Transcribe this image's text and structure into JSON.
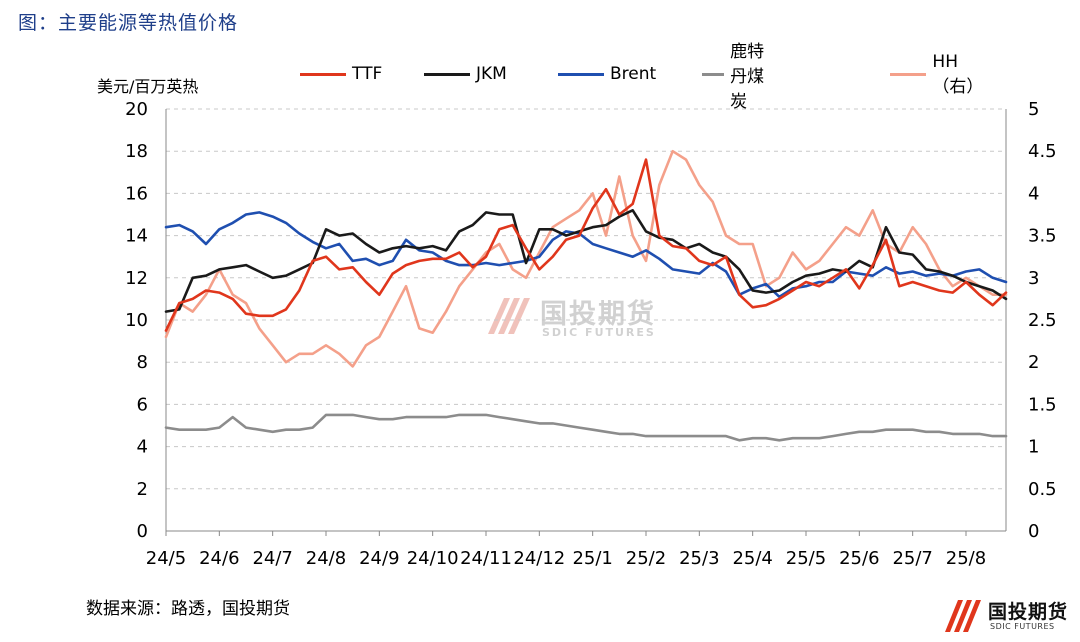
{
  "figure": {
    "title": "图：主要能源等热值价格",
    "unit": "美元/百万英热",
    "source": "数据来源：路透，国投期货"
  },
  "logo": {
    "cn": "国投期货",
    "en": "SDIC FUTURES"
  },
  "watermark": {
    "cn": "国投期货",
    "en": "SDIC FUTURES"
  },
  "chart_data": {
    "type": "line",
    "x_tick_labels": [
      "24/5",
      "24/6",
      "24/7",
      "24/8",
      "24/9",
      "24/10",
      "24/11",
      "24/12",
      "25/1",
      "25/2",
      "25/3",
      "25/4",
      "25/5",
      "25/6",
      "25/7",
      "25/8"
    ],
    "x_range": [
      0,
      15.75
    ],
    "ylabel": "美元/百万英热",
    "ylim": [
      0,
      20
    ],
    "y_ticks": [
      0,
      2,
      4,
      6,
      8,
      10,
      12,
      14,
      16,
      18,
      20
    ],
    "y2lim": [
      0,
      5
    ],
    "y2_ticks": [
      "0",
      "0.5",
      "1",
      "1.5",
      "2",
      "2.5",
      "3",
      "3.5",
      "4",
      "4.5",
      "5"
    ],
    "grid": "horizontal dashed",
    "legend_position": "top",
    "series": [
      {
        "name": "TTF",
        "axis": "left",
        "color": "#e0361c",
        "x": [
          0,
          0.25,
          0.5,
          0.75,
          1,
          1.25,
          1.5,
          1.75,
          2,
          2.25,
          2.5,
          2.75,
          3,
          3.25,
          3.5,
          3.75,
          4,
          4.25,
          4.5,
          4.75,
          5,
          5.25,
          5.5,
          5.75,
          6,
          6.25,
          6.5,
          6.75,
          7,
          7.25,
          7.5,
          7.75,
          8,
          8.25,
          8.5,
          8.75,
          9,
          9.25,
          9.5,
          9.75,
          10,
          10.25,
          10.5,
          10.75,
          11,
          11.25,
          11.5,
          11.75,
          12,
          12.25,
          12.5,
          12.75,
          13,
          13.25,
          13.5,
          13.75,
          14,
          14.25,
          14.5,
          14.75,
          15,
          15.25,
          15.5,
          15.75
        ],
        "values": [
          9.5,
          10.8,
          11,
          11.4,
          11.3,
          11,
          10.3,
          10.2,
          10.2,
          10.5,
          11.4,
          12.8,
          13,
          12.4,
          12.5,
          11.8,
          11.2,
          12.2,
          12.6,
          12.8,
          12.9,
          12.9,
          13.2,
          12.5,
          13,
          14.3,
          14.5,
          13.4,
          12.4,
          13,
          13.8,
          14,
          15.3,
          16.2,
          15,
          15.5,
          17.6,
          14,
          13.5,
          13.4,
          12.8,
          12.6,
          13,
          11.2,
          10.6,
          10.7,
          11,
          11.4,
          11.8,
          11.6,
          12,
          12.4,
          11.5,
          12.6,
          13.8,
          11.6,
          11.8,
          11.6,
          11.4,
          11.3,
          11.8,
          11.2,
          10.7,
          11.3
        ]
      },
      {
        "name": "JKM",
        "axis": "left",
        "color": "#1a1a1a",
        "x": [
          0,
          0.25,
          0.5,
          0.75,
          1,
          1.25,
          1.5,
          1.75,
          2,
          2.25,
          2.5,
          2.75,
          3,
          3.25,
          3.5,
          3.75,
          4,
          4.25,
          4.5,
          4.75,
          5,
          5.25,
          5.5,
          5.75,
          6,
          6.25,
          6.5,
          6.75,
          7,
          7.25,
          7.5,
          7.75,
          8,
          8.25,
          8.5,
          8.75,
          9,
          9.25,
          9.5,
          9.75,
          10,
          10.25,
          10.5,
          10.75,
          11,
          11.25,
          11.5,
          11.75,
          12,
          12.25,
          12.5,
          12.75,
          13,
          13.25,
          13.5,
          13.75,
          14,
          14.25,
          14.5,
          14.75,
          15,
          15.25,
          15.5,
          15.75
        ],
        "values": [
          10.4,
          10.5,
          12,
          12.1,
          12.4,
          12.5,
          12.6,
          12.3,
          12,
          12.1,
          12.4,
          12.7,
          14.3,
          14,
          14.1,
          13.6,
          13.2,
          13.4,
          13.5,
          13.4,
          13.5,
          13.3,
          14.2,
          14.5,
          15.1,
          15,
          15,
          12.7,
          14.3,
          14.3,
          14,
          14.2,
          14.4,
          14.5,
          14.9,
          15.2,
          14.2,
          13.9,
          13.8,
          13.4,
          13.6,
          13.2,
          13,
          12.4,
          11.4,
          11.3,
          11.4,
          11.8,
          12.1,
          12.2,
          12.4,
          12.3,
          12.8,
          12.5,
          14.4,
          13.2,
          13.1,
          12.4,
          12.3,
          12.1,
          11.8,
          11.6,
          11.4,
          11.0
        ]
      },
      {
        "name": "Brent",
        "axis": "left",
        "color": "#1f4fb0",
        "x": [
          0,
          0.25,
          0.5,
          0.75,
          1,
          1.25,
          1.5,
          1.75,
          2,
          2.25,
          2.5,
          2.75,
          3,
          3.25,
          3.5,
          3.75,
          4,
          4.25,
          4.5,
          4.75,
          5,
          5.25,
          5.5,
          5.75,
          6,
          6.25,
          6.5,
          6.75,
          7,
          7.25,
          7.5,
          7.75,
          8,
          8.25,
          8.5,
          8.75,
          9,
          9.25,
          9.5,
          9.75,
          10,
          10.25,
          10.5,
          10.75,
          11,
          11.25,
          11.5,
          11.75,
          12,
          12.25,
          12.5,
          12.75,
          13,
          13.25,
          13.5,
          13.75,
          14,
          14.25,
          14.5,
          14.75,
          15,
          15.25,
          15.5,
          15.75
        ],
        "values": [
          14.4,
          14.5,
          14.2,
          13.6,
          14.3,
          14.6,
          15,
          15.1,
          14.9,
          14.6,
          14.1,
          13.7,
          13.4,
          13.6,
          12.8,
          12.9,
          12.6,
          12.8,
          13.8,
          13.3,
          13.2,
          12.8,
          12.6,
          12.6,
          12.7,
          12.6,
          12.7,
          12.8,
          13,
          13.8,
          14.2,
          14.1,
          13.6,
          13.4,
          13.2,
          13,
          13.3,
          12.9,
          12.4,
          12.3,
          12.2,
          12.7,
          12.3,
          11.2,
          11.5,
          11.7,
          11.1,
          11.5,
          11.6,
          11.8,
          11.8,
          12.3,
          12.2,
          12.1,
          12.5,
          12.2,
          12.3,
          12.1,
          12.2,
          12.1,
          12.3,
          12.4,
          12.0,
          11.8
        ]
      },
      {
        "name": "鹿特丹煤炭",
        "axis": "left",
        "color": "#8c8c8c",
        "x": [
          0,
          0.25,
          0.5,
          0.75,
          1,
          1.25,
          1.5,
          1.75,
          2,
          2.25,
          2.5,
          2.75,
          3,
          3.25,
          3.5,
          3.75,
          4,
          4.25,
          4.5,
          4.75,
          5,
          5.25,
          5.5,
          5.75,
          6,
          6.25,
          6.5,
          6.75,
          7,
          7.25,
          7.5,
          7.75,
          8,
          8.25,
          8.5,
          8.75,
          9,
          9.25,
          9.5,
          9.75,
          10,
          10.25,
          10.5,
          10.75,
          11,
          11.25,
          11.5,
          11.75,
          12,
          12.25,
          12.5,
          12.75,
          13,
          13.25,
          13.5,
          13.75,
          14,
          14.25,
          14.5,
          14.75,
          15,
          15.25,
          15.5,
          15.75
        ],
        "values": [
          4.9,
          4.8,
          4.8,
          4.8,
          4.9,
          5.4,
          4.9,
          4.8,
          4.7,
          4.8,
          4.8,
          4.9,
          5.5,
          5.5,
          5.5,
          5.4,
          5.3,
          5.3,
          5.4,
          5.4,
          5.4,
          5.4,
          5.5,
          5.5,
          5.5,
          5.4,
          5.3,
          5.2,
          5.1,
          5.1,
          5.0,
          4.9,
          4.8,
          4.7,
          4.6,
          4.6,
          4.5,
          4.5,
          4.5,
          4.5,
          4.5,
          4.5,
          4.5,
          4.3,
          4.4,
          4.4,
          4.3,
          4.4,
          4.4,
          4.4,
          4.5,
          4.6,
          4.7,
          4.7,
          4.8,
          4.8,
          4.8,
          4.7,
          4.7,
          4.6,
          4.6,
          4.6,
          4.5,
          4.5
        ]
      },
      {
        "name": "HH（右）",
        "axis": "right",
        "color": "#f4a08a",
        "x": [
          0,
          0.25,
          0.5,
          0.75,
          1,
          1.25,
          1.5,
          1.75,
          2,
          2.25,
          2.5,
          2.75,
          3,
          3.25,
          3.5,
          3.75,
          4,
          4.25,
          4.5,
          4.75,
          5,
          5.25,
          5.5,
          5.75,
          6,
          6.25,
          6.5,
          6.75,
          7,
          7.25,
          7.5,
          7.75,
          8,
          8.25,
          8.5,
          8.75,
          9,
          9.25,
          9.5,
          9.75,
          10,
          10.25,
          10.5,
          10.75,
          11,
          11.25,
          11.5,
          11.75,
          12,
          12.25,
          12.5,
          12.75,
          13,
          13.25,
          13.5,
          13.75,
          14,
          14.25,
          14.5,
          14.75,
          15,
          15.25,
          15.5,
          15.75
        ],
        "values": [
          2.3,
          2.7,
          2.6,
          2.8,
          3.1,
          2.8,
          2.7,
          2.4,
          2.2,
          2.0,
          2.1,
          2.1,
          2.2,
          2.1,
          1.95,
          2.2,
          2.3,
          2.6,
          2.9,
          2.4,
          2.35,
          2.6,
          2.9,
          3.1,
          3.3,
          3.4,
          3.1,
          3.0,
          3.3,
          3.6,
          3.7,
          3.8,
          4.0,
          3.5,
          4.2,
          3.5,
          3.2,
          4.1,
          4.5,
          4.4,
          4.1,
          3.9,
          3.5,
          3.4,
          3.4,
          2.9,
          3.0,
          3.3,
          3.1,
          3.2,
          3.4,
          3.6,
          3.5,
          3.8,
          3.4,
          3.3,
          3.6,
          3.4,
          3.1,
          2.9,
          3.0,
          2.9,
          2.8,
          2.8
        ]
      }
    ]
  }
}
